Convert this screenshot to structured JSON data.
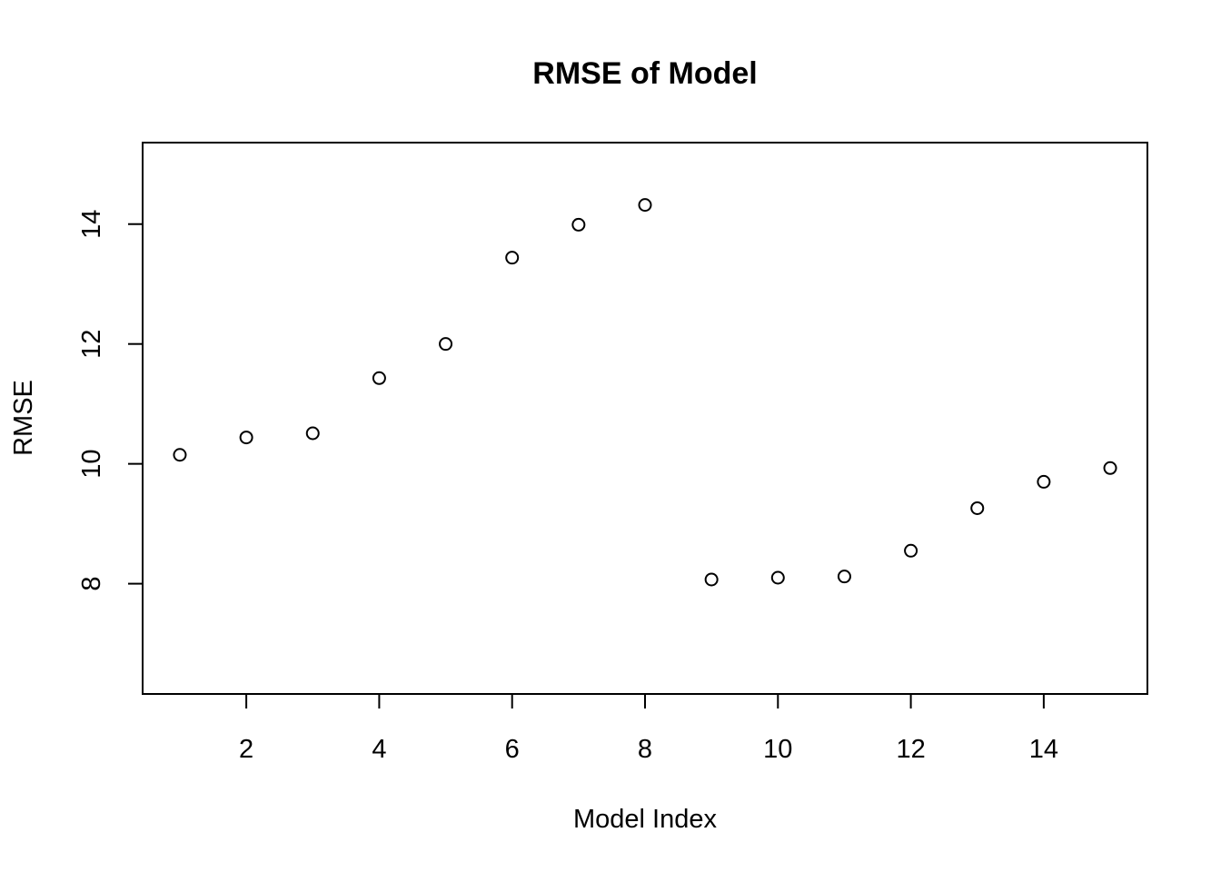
{
  "chart_data": {
    "type": "scatter",
    "title": "RMSE of Model",
    "xlabel": "Model Index",
    "ylabel": "RMSE",
    "x": [
      1,
      2,
      3,
      4,
      5,
      6,
      7,
      8,
      9,
      10,
      11,
      12,
      13,
      14,
      15
    ],
    "y": [
      10.15,
      10.44,
      10.51,
      11.43,
      12.0,
      13.44,
      13.99,
      14.32,
      8.07,
      8.1,
      8.12,
      8.55,
      9.26,
      9.7,
      9.93
    ],
    "xlim": [
      0.44,
      15.56
    ],
    "ylim": [
      6.16,
      15.36
    ],
    "xticks": [
      2,
      4,
      6,
      8,
      10,
      12,
      14
    ],
    "yticks": [
      8,
      10,
      12,
      14
    ],
    "grid": false,
    "legend": "none",
    "marker": "open-circle",
    "colors": {
      "points": "#000000",
      "axes": "#000000",
      "background": "#ffffff"
    }
  }
}
